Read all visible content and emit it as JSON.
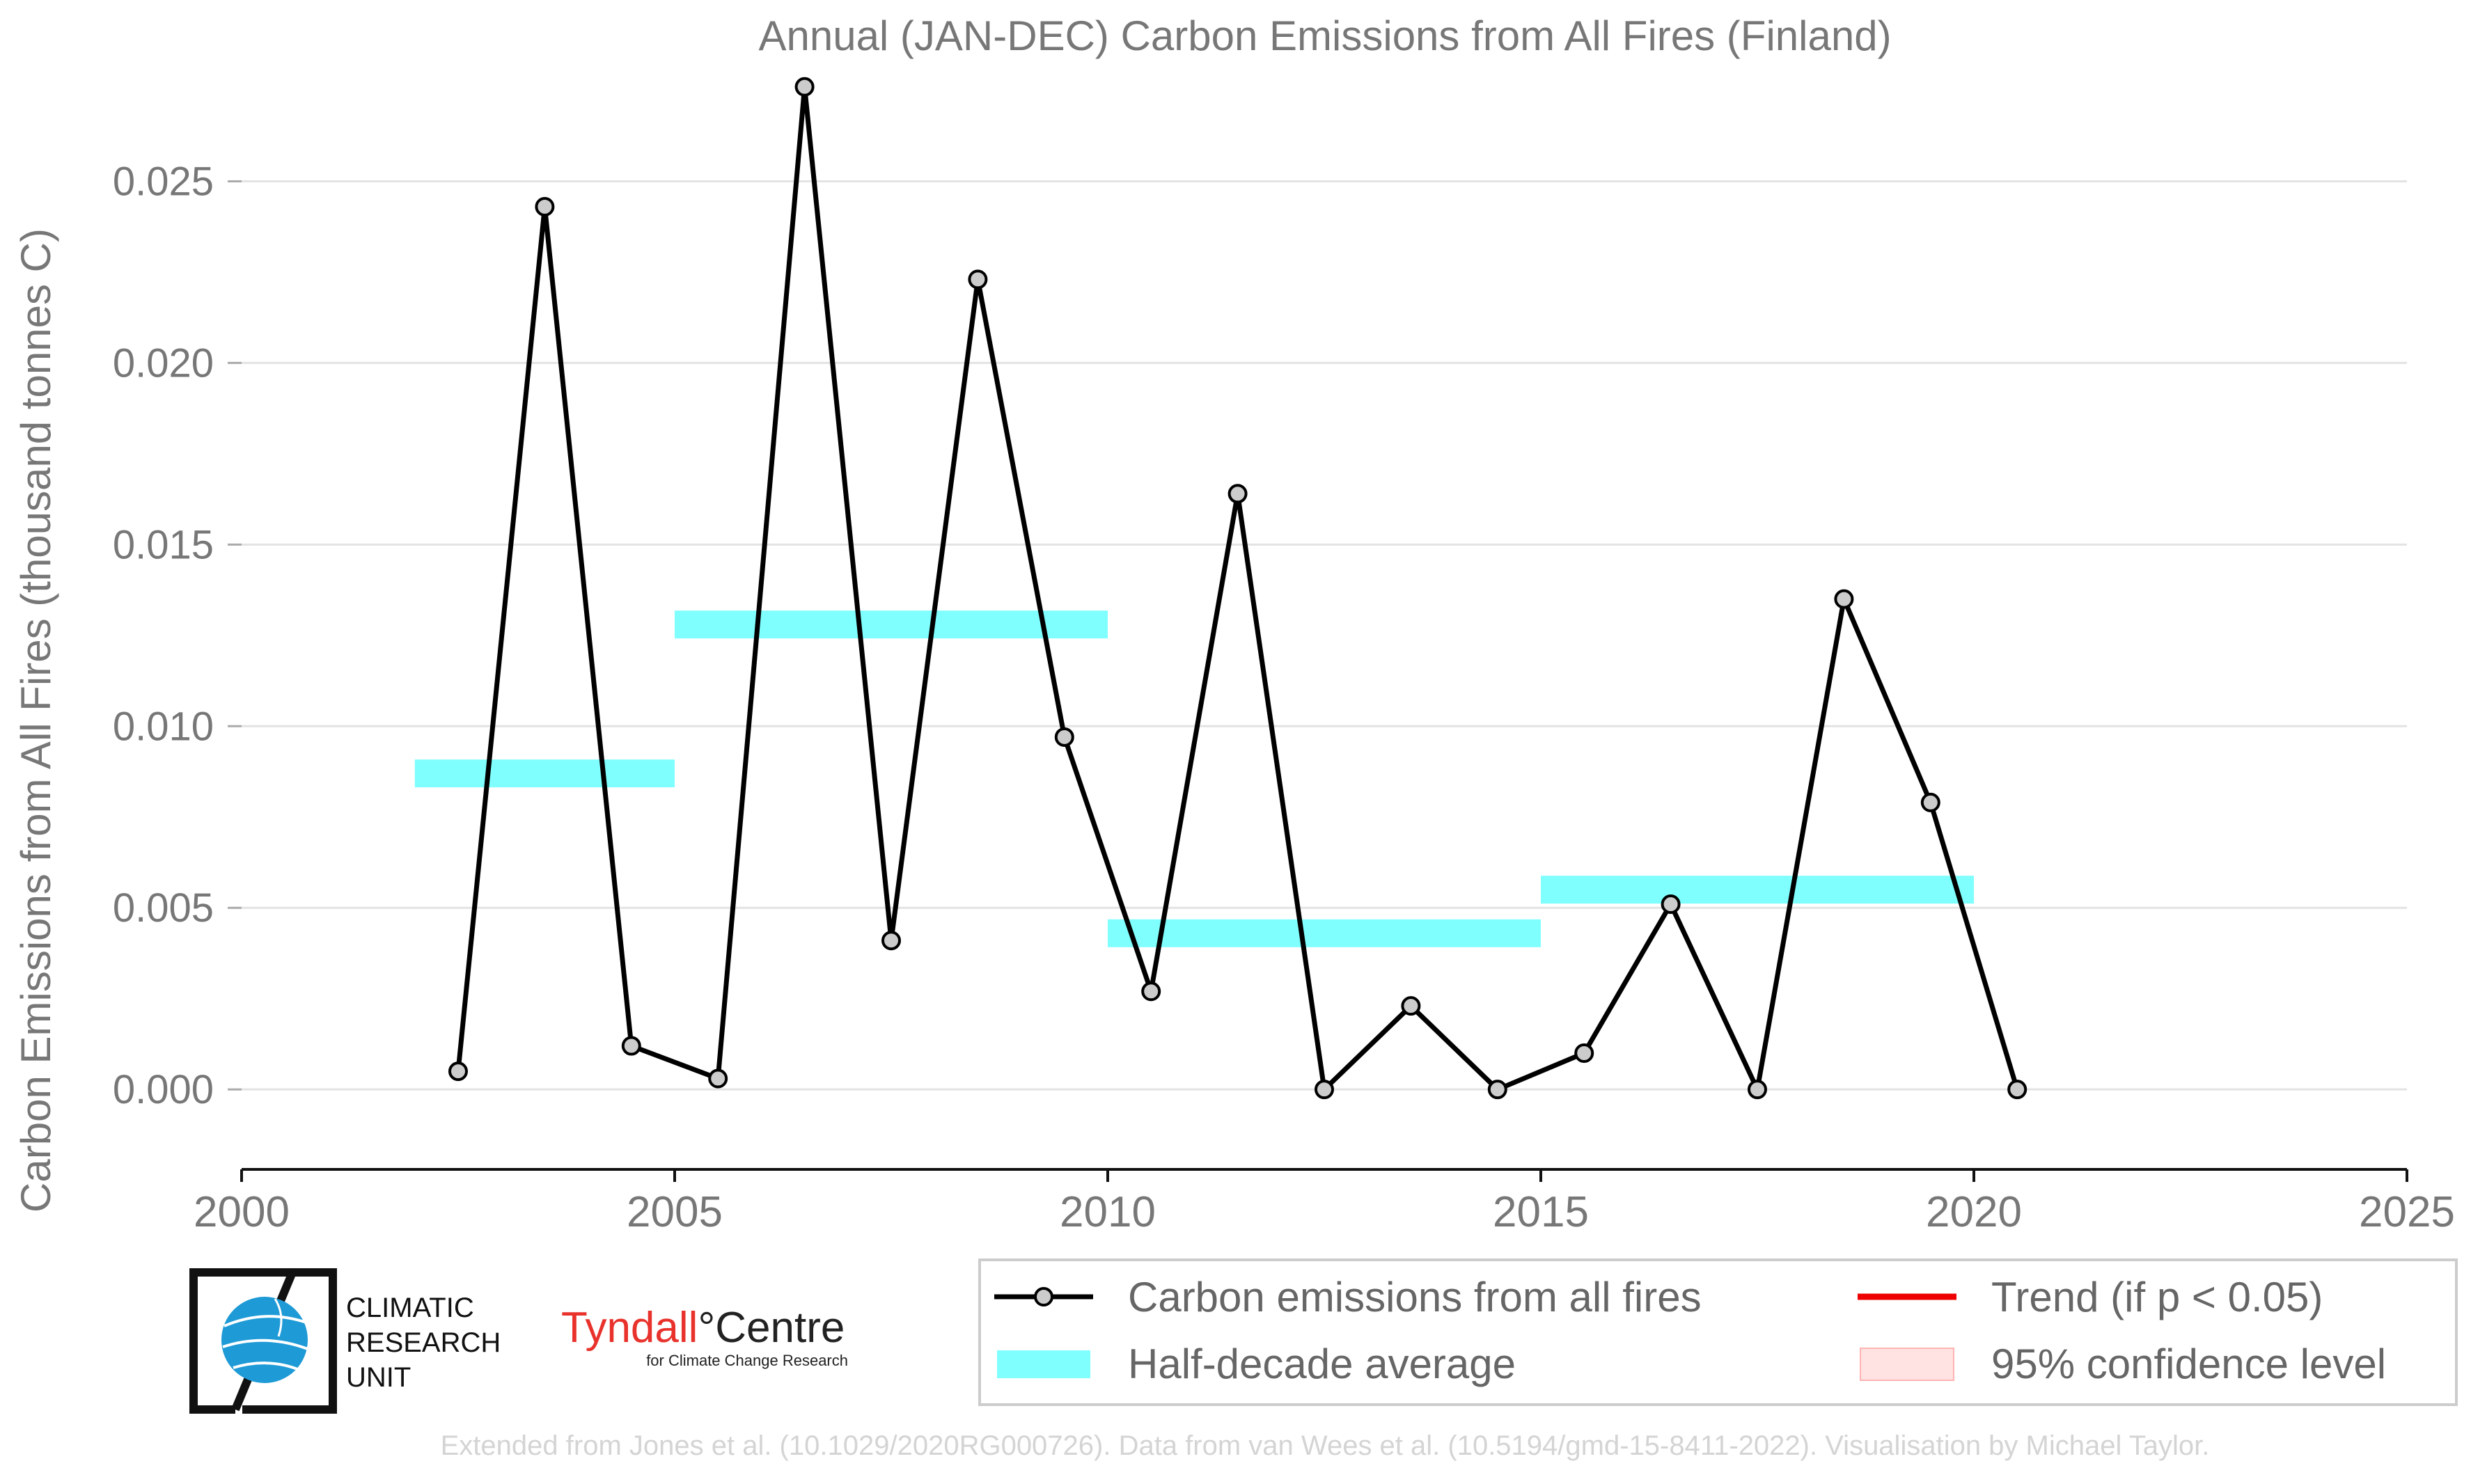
{
  "chart_data": {
    "type": "line",
    "title": "Annual (JAN-DEC) Carbon Emissions from All Fires (Finland)",
    "xlabel": "",
    "ylabel": "Carbon Emissions from All Fires (thousand tonnes C)",
    "xlim": [
      2000,
      2025
    ],
    "ylim": [
      -0.0022,
      0.0275
    ],
    "x_ticks": [
      "2000",
      "2005",
      "2010",
      "2015",
      "2020",
      "2025"
    ],
    "y_ticks": [
      "0.000",
      "0.005",
      "0.010",
      "0.015",
      "0.020",
      "0.025"
    ],
    "grid": "horizontal",
    "legend_position": "bottom-right",
    "series": [
      {
        "name": "Carbon emissions from all fires",
        "x": [
          2002.5,
          2003.5,
          2004.5,
          2005.5,
          2006.5,
          2007.5,
          2008.5,
          2009.5,
          2010.5,
          2011.5,
          2012.5,
          2013.5,
          2014.5,
          2015.5,
          2016.5,
          2017.5,
          2018.5,
          2019.5,
          2020.5
        ],
        "values": [
          0.0005,
          0.0243,
          0.0012,
          0.0003,
          0.0276,
          0.0041,
          0.0223,
          0.0097,
          0.0027,
          0.0164,
          0.0,
          0.0023,
          0.0,
          0.001,
          0.0051,
          0.0,
          0.0135,
          0.0079,
          0.0
        ],
        "color": "#000000"
      },
      {
        "name": "Half-decade average",
        "segments": [
          {
            "x_start": 2002,
            "x_end": 2005,
            "value": 0.0087
          },
          {
            "x_start": 2005,
            "x_end": 2010,
            "value": 0.0128
          },
          {
            "x_start": 2010,
            "x_end": 2015,
            "value": 0.0043
          },
          {
            "x_start": 2015,
            "x_end": 2020,
            "value": 0.0055
          }
        ],
        "color": "#80FFFF"
      }
    ],
    "legend": [
      {
        "label": "Carbon emissions from all fires",
        "color": "#000000"
      },
      {
        "label": "Half-decade average",
        "color": "#80FFFF"
      },
      {
        "label": "Trend (if p < 0.05)",
        "color": "#EE0000"
      },
      {
        "label": "95% confidence level",
        "color": "#FFE2E2"
      }
    ]
  },
  "logos": {
    "cru_text": [
      "CLIMATIC",
      "RESEARCH",
      "UNIT"
    ],
    "tyndall_main": "Tyndall",
    "tyndall_degree": "°",
    "tyndall_centre": "Centre",
    "tyndall_sub": "for Climate Change Research"
  },
  "footer": "Extended from Jones et al. (10.1029/2020RG000726). Data from van Wees et al. (10.5194/gmd-15-8411-2022). Visualisation by Michael Taylor."
}
